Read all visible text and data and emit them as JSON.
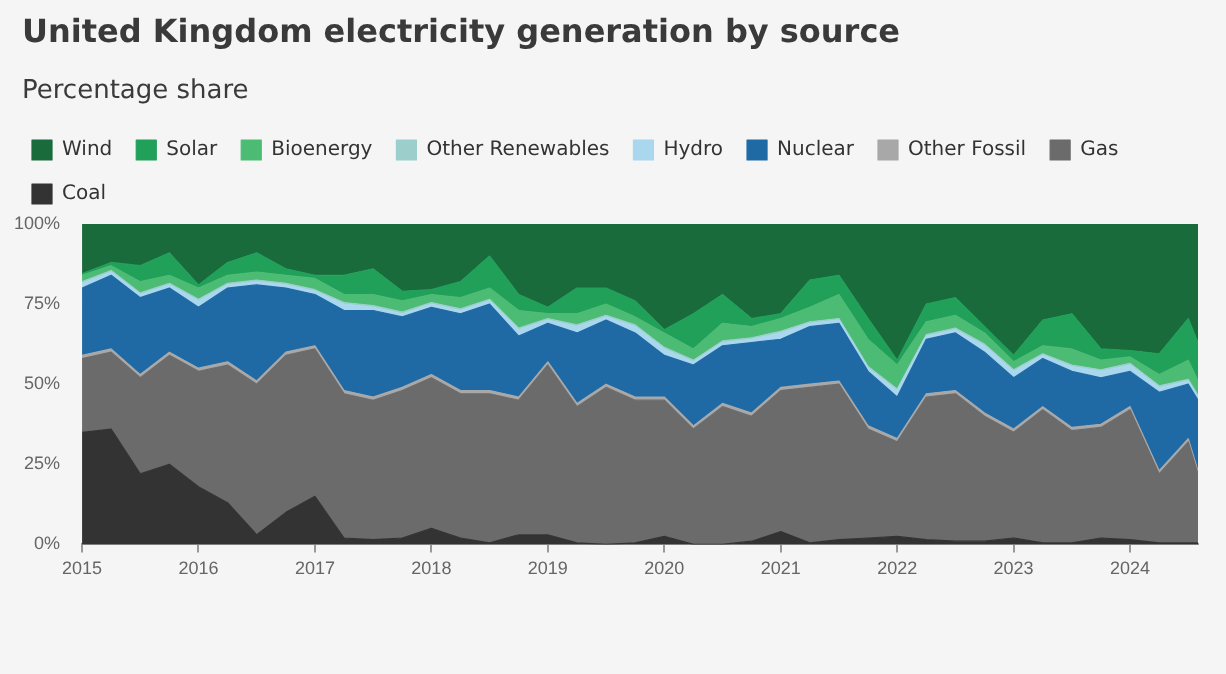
{
  "chart_data": {
    "type": "area",
    "title": "United Kingdom electricity generation by source",
    "subtitle": "Percentage share",
    "stacked": true,
    "legend": "top left",
    "grid": false,
    "x": [
      "2015-01",
      "2015-04",
      "2015-07",
      "2015-10",
      "2016-01",
      "2016-04",
      "2016-07",
      "2016-10",
      "2017-01",
      "2017-04",
      "2017-07",
      "2017-10",
      "2018-01",
      "2018-04",
      "2018-07",
      "2018-10",
      "2019-01",
      "2019-04",
      "2019-07",
      "2019-10",
      "2020-01",
      "2020-04",
      "2020-07",
      "2020-10",
      "2021-01",
      "2021-04",
      "2021-07",
      "2021-10",
      "2022-01",
      "2022-04",
      "2022-07",
      "2022-10",
      "2023-01",
      "2023-04",
      "2023-07",
      "2023-10",
      "2024-01",
      "2024-04",
      "2024-07",
      "2024-08"
    ],
    "xlim": [
      "2015-01",
      "2024-08"
    ],
    "xticks": [
      "2015",
      "2016",
      "2017",
      "2018",
      "2019",
      "2020",
      "2021",
      "2022",
      "2023",
      "2024"
    ],
    "ylim": [
      0,
      100
    ],
    "yticks": [
      {
        "value": 0,
        "label": "0%"
      },
      {
        "value": 25,
        "label": "25%"
      },
      {
        "value": 50,
        "label": "50%"
      },
      {
        "value": 75,
        "label": "75%"
      },
      {
        "value": 100,
        "label": "100%"
      }
    ],
    "series": [
      {
        "name": "Coal",
        "color": "#333333",
        "values": [
          35,
          36,
          22,
          25,
          18,
          13,
          3,
          10,
          15,
          2,
          1.5,
          2,
          5,
          2,
          0.5,
          3,
          3,
          0.5,
          0,
          0.5,
          2.5,
          0,
          0,
          1,
          4,
          0.5,
          1.5,
          2,
          2.5,
          1.5,
          1,
          1,
          2,
          0.5,
          0.5,
          2,
          1.5,
          0.5,
          0.5,
          0.5
        ]
      },
      {
        "name": "Gas",
        "color": "#6b6b6b",
        "values": [
          23,
          24,
          30,
          34,
          36,
          43,
          47,
          49,
          46,
          45,
          43.5,
          46,
          47,
          45,
          46.5,
          42,
          53,
          42.5,
          49,
          44.5,
          42.5,
          36,
          43,
          39,
          44,
          48.5,
          48.5,
          34,
          29.5,
          44.5,
          46,
          39,
          33,
          41.5,
          35,
          34.5,
          40.5,
          21.5,
          31.5,
          21.5
        ]
      },
      {
        "name": "Other Fossil",
        "color": "#a8a8a8",
        "values": [
          1,
          1,
          1,
          1,
          1,
          1,
          1,
          1,
          1,
          1,
          1,
          1,
          1,
          1,
          1,
          1,
          1,
          1,
          1,
          1,
          1,
          1,
          1,
          1,
          1,
          1,
          1,
          1,
          1,
          1,
          1,
          1,
          1,
          1,
          1,
          1,
          1,
          1,
          1,
          1
        ]
      },
      {
        "name": "Nuclear",
        "color": "#1f6aa5",
        "values": [
          21,
          23,
          24,
          20,
          19,
          23,
          30,
          20,
          16,
          25,
          27,
          22,
          21,
          24,
          27,
          19,
          12,
          22,
          20,
          20,
          13,
          19,
          18,
          22,
          15,
          18,
          18,
          17,
          13,
          17,
          18,
          19,
          16,
          15,
          17.5,
          14.5,
          11,
          24.5,
          17,
          22
        ]
      },
      {
        "name": "Hydro",
        "color": "#a9d8ee",
        "values": [
          1.5,
          1,
          1,
          1,
          2,
          1,
          1,
          1,
          1,
          2,
          1,
          1,
          1,
          1,
          1,
          2,
          1,
          2,
          1,
          2,
          2,
          1,
          1,
          1,
          2,
          1,
          1,
          1,
          2,
          1,
          1,
          2,
          2,
          1,
          1.5,
          2,
          2,
          1.5,
          1,
          1
        ]
      },
      {
        "name": "Other Renewables",
        "color": "#9ccfcc",
        "values": [
          0.5,
          0.5,
          0.5,
          0.5,
          0.5,
          0.5,
          0.5,
          0.5,
          0.5,
          0.5,
          0.5,
          0.5,
          0.5,
          0.5,
          0.5,
          0.5,
          0.5,
          0.5,
          0.5,
          0.5,
          0.5,
          0.5,
          0.5,
          0.5,
          0.5,
          0.5,
          0.5,
          0.5,
          0.5,
          0.5,
          0.5,
          0.5,
          0.5,
          0.5,
          0.5,
          0.5,
          0.5,
          0.5,
          0.5,
          0.5
        ]
      },
      {
        "name": "Bioenergy",
        "color": "#4cbb74",
        "values": [
          2,
          1.5,
          3.5,
          2.5,
          3.5,
          2.5,
          2.5,
          2.5,
          3.5,
          2.5,
          3.5,
          3.5,
          2.5,
          3.5,
          3.5,
          5.5,
          1.5,
          3.5,
          3.5,
          2.5,
          4.5,
          3.5,
          5.5,
          3.5,
          4,
          4.5,
          7.5,
          8.5,
          7.5,
          4,
          4,
          3.5,
          2.5,
          2.5,
          5,
          3,
          2,
          3.5,
          6,
          4.5
        ]
      },
      {
        "name": "Solar",
        "color": "#21a05a",
        "values": [
          0.5,
          1,
          5,
          7,
          1,
          4,
          6,
          2,
          1,
          6,
          8,
          3,
          1.5,
          5,
          10,
          5,
          2,
          8,
          5,
          5,
          1,
          11,
          9,
          2.5,
          1.5,
          8.5,
          6,
          6.5,
          1.5,
          5.5,
          5.5,
          2,
          2,
          8,
          11,
          3.5,
          2,
          6.5,
          13,
          12
        ]
      },
      {
        "name": "Wind",
        "color": "#1a6b3c",
        "values": [
          15.5,
          12,
          13,
          9,
          19,
          12,
          9,
          14,
          16,
          16,
          14,
          21,
          20.5,
          18,
          10,
          22,
          26,
          20,
          20,
          24,
          33,
          28,
          22,
          29.5,
          28,
          17.5,
          16,
          29.5,
          42.5,
          25,
          23,
          32,
          41,
          30,
          28,
          39,
          39.5,
          40.5,
          29.5,
          37
        ]
      }
    ]
  }
}
